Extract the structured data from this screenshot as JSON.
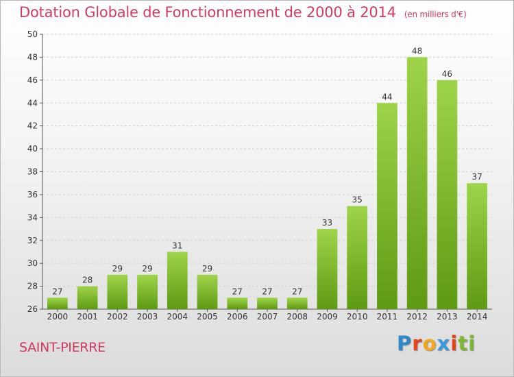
{
  "title": "Dotation Globale de Fonctionnement de 2000 à 2014",
  "subtitle": "(en milliers d'€)",
  "commune": "SAINT-PIERRE",
  "brand": [
    "P",
    "r",
    "o",
    "x",
    "i",
    "t",
    "i"
  ],
  "colors": {
    "title": "#d33a62",
    "bar_top": "#9fd44a",
    "bar_bottom": "#5e9a12",
    "grid": "#d0d0d0",
    "axis": "#555555"
  },
  "chart_data": {
    "type": "bar",
    "categories": [
      "2000",
      "2001",
      "2002",
      "2003",
      "2004",
      "2005",
      "2006",
      "2007",
      "2008",
      "2009",
      "2010",
      "2011",
      "2012",
      "2013",
      "2014"
    ],
    "values": [
      27,
      28,
      29,
      29,
      31,
      29,
      27,
      27,
      27,
      33,
      35,
      44,
      48,
      46,
      37
    ],
    "ylim": [
      26,
      50
    ],
    "yticks": [
      26,
      28,
      30,
      32,
      34,
      36,
      38,
      40,
      42,
      44,
      46,
      48,
      50
    ],
    "grid": true,
    "legend": "none"
  }
}
